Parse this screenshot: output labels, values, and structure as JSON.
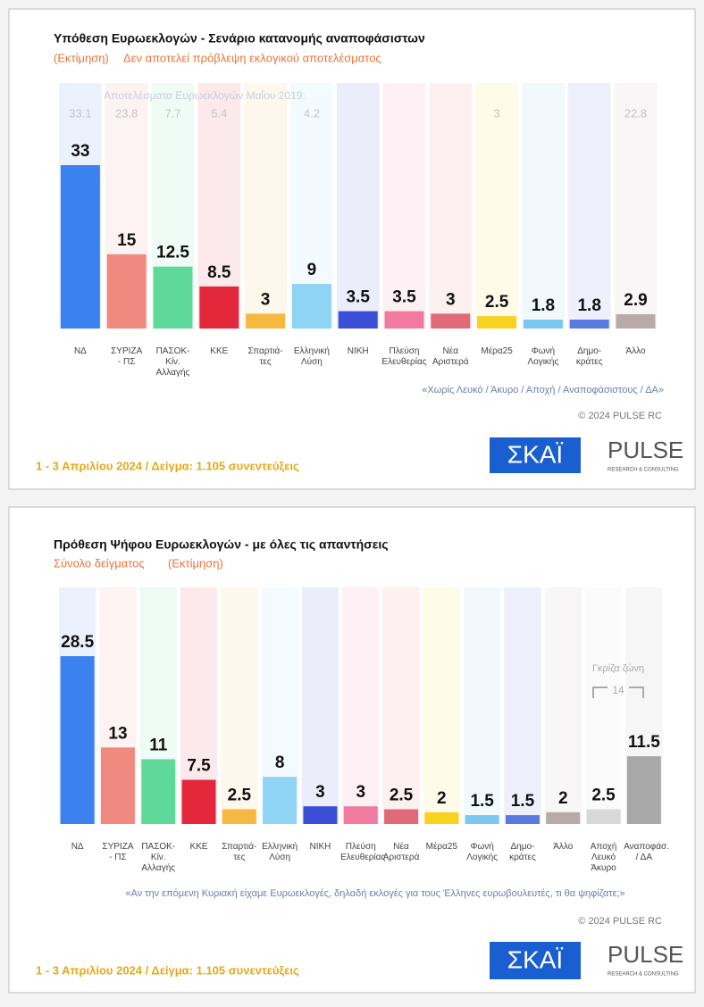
{
  "chart_data": [
    {
      "type": "bar",
      "title": "Υπόθεση Ευρωεκλογών - Σενάριο κατανομής αναποφάσιστων",
      "subtitle": [
        "(Εκτίμηση)",
        "Δεν αποτελεί πρόβλεψη εκλογικού αποτελέσματος"
      ],
      "categories": [
        "ΝΔ",
        "ΣΥΡΙΖΑ\n- ΠΣ",
        "ΠΑΣΟΚ-Κίν.\nΑλλαγής",
        "ΚΚΕ",
        "Σπαρτιά-\nτες",
        "Ελληνική\nΛύση",
        "ΝΙΚΗ",
        "Πλεύση\nΕλευθερίας",
        "Νέα\nΑριστερά",
        "Μέρα25",
        "Φωνή\nΛογικής",
        "Δημο-\nκράτες",
        "Άλλο"
      ],
      "values": [
        33,
        15,
        12.5,
        8.5,
        3,
        9,
        3.5,
        3.5,
        3,
        2.5,
        1.8,
        1.8,
        2.9
      ],
      "colors": [
        "#3b82f0",
        "#f08a80",
        "#5fd99a",
        "#e3283c",
        "#f5b942",
        "#8fd3f5",
        "#3a4fd6",
        "#f07aa0",
        "#e06a78",
        "#f7d320",
        "#7ac8f0",
        "#5a7ae0",
        "#b8aaa8"
      ],
      "previous_title": "Αποτελέσματα Ευρωεκλογών Μαΐου 2019:",
      "previous_values": [
        33.1,
        23.8,
        7.7,
        5.4,
        null,
        4.2,
        null,
        null,
        null,
        3,
        null,
        null,
        22.8
      ],
      "note": "«Χωρίς Λευκό / Άκυρο / Αποχή / Αναποφάσιστους / ΔΑ»",
      "copyright": "© 2024 PULSE RC",
      "date_sample": "1 - 3 Απριλίου 2024  /  Δείγμα:  1.105 συνεντεύξεις",
      "logos": [
        "ΣΚΑΪ",
        "PULSE",
        "RESEARCH & CONSULTING"
      ]
    },
    {
      "type": "bar",
      "title": "Πρόθεση Ψήφου Ευρωεκλογών - με όλες τις απαντήσεις",
      "subtitle": [
        "Σύνολο δείγματος",
        "(Εκτίμηση)"
      ],
      "categories": [
        "ΝΔ",
        "ΣΥΡΙΖΑ\n- ΠΣ",
        "ΠΑΣΟΚ-Κίν.\nΑλλαγής",
        "ΚΚΕ",
        "Σπαρτιά-\nτες",
        "Ελληνική\nΛύση",
        "ΝΙΚΗ",
        "Πλεύση\nΕλευθερίας",
        "Νέα\nΑριστερά",
        "Μέρα25",
        "Φωνή\nΛογικής",
        "Δημο-\nκράτες",
        "Άλλο",
        "Αποχή\nΛευκό\nΆκυρο",
        "Αναποφάσ.\n/ ΔΑ"
      ],
      "values": [
        28.5,
        13,
        11,
        7.5,
        2.5,
        8,
        3,
        3,
        2.5,
        2,
        1.5,
        1.5,
        2,
        2.5,
        11.5
      ],
      "colors": [
        "#3b82f0",
        "#f08a80",
        "#5fd99a",
        "#e3283c",
        "#f5b942",
        "#8fd3f5",
        "#3a4fd6",
        "#f07aa0",
        "#e06a78",
        "#f7d320",
        "#7ac8f0",
        "#5a7ae0",
        "#b8aaa8",
        "#d8d8d8",
        "#a8a8a8"
      ],
      "annotation": {
        "text": "Γκρίζα ζώνη",
        "value": 14
      },
      "note": "«Αν την επόμενη Κυριακή είχαμε Ευρωεκλογές, δηλαδή εκλογές για τους Έλληνες ευρωβουλευτές, τι θα ψηφίζατε;»",
      "copyright": "© 2024 PULSE RC",
      "date_sample": "1 - 3 Απριλίου 2024  /  Δείγμα:  1.105 συνεντεύξεις",
      "logos": [
        "ΣΚΑΪ",
        "PULSE",
        "RESEARCH & CONSULTING"
      ]
    }
  ]
}
